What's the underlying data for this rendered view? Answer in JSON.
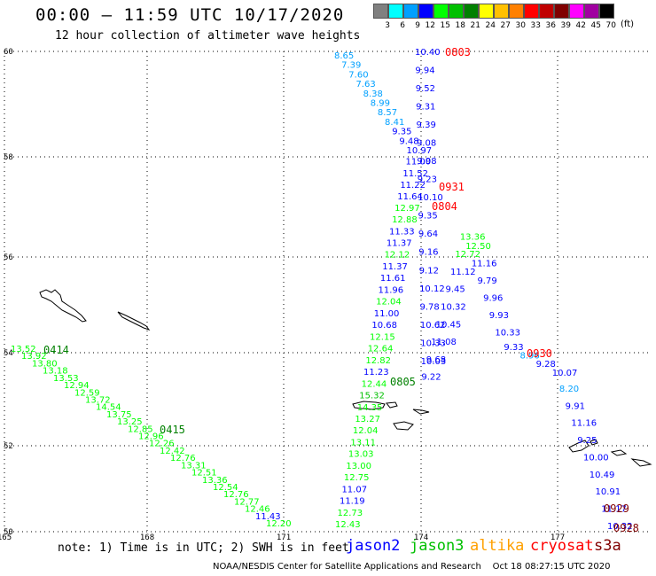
{
  "header": {
    "title": "00:00 – 11:59 UTC 10/17/2020",
    "subtitle": "12 hour collection of altimeter wave heights"
  },
  "legend": {
    "unit_label": "(ft)",
    "bins": [
      {
        "label": "3",
        "color": "#808080"
      },
      {
        "label": "6",
        "color": "#00ffff"
      },
      {
        "label": "9",
        "color": "#00a0ff"
      },
      {
        "label": "12",
        "color": "#0000ff"
      },
      {
        "label": "15",
        "color": "#00ff00"
      },
      {
        "label": "18",
        "color": "#00c000"
      },
      {
        "label": "21",
        "color": "#008000"
      },
      {
        "label": "24",
        "color": "#ffff00"
      },
      {
        "label": "27",
        "color": "#ffc000"
      },
      {
        "label": "30",
        "color": "#ff8000"
      },
      {
        "label": "33",
        "color": "#ff0000"
      },
      {
        "label": "36",
        "color": "#c00000"
      },
      {
        "label": "39",
        "color": "#800000"
      },
      {
        "label": "42",
        "color": "#ff00ff"
      },
      {
        "label": "45",
        "color": "#a000a0"
      },
      {
        "label": "70",
        "color": "#000000"
      }
    ]
  },
  "map": {
    "lon_ticks": [
      "165",
      "168",
      "171",
      "174",
      "177"
    ],
    "lat_ticks": [
      "60",
      "58",
      "56",
      "54",
      "52",
      "50"
    ],
    "gridlines": true,
    "coastline_color": "#000000"
  },
  "footer": {
    "note": "note: 1) Time is in UTC; 2) SWH is in feet",
    "missions": [
      {
        "name": "jason2",
        "color": "#0000ff"
      },
      {
        "name": "jason3",
        "color": "#00c000"
      },
      {
        "name": "altika",
        "color": "#ffa000"
      },
      {
        "name": "cryosat",
        "color": "#ff0000"
      },
      {
        "name": "s3a",
        "color": "#800000"
      }
    ],
    "credit": "NOAA/NESDIS Center for Satellite Applications and Research    Oct 18 08:27:15 UTC 2020"
  },
  "tracks": [
    {
      "mission": "cryosat",
      "start": "0803",
      "values": [
        "10.40",
        "9.94",
        "9.52",
        "9.31",
        "9.39",
        "9.08",
        "9.98",
        "9.23",
        "10.10",
        "9.35",
        "9.64",
        "9.16",
        "9.12",
        "10.12",
        "9.78",
        "10.62",
        "10.33",
        "10.03",
        "9.22",
        "9.68",
        "11.08",
        "10.45",
        "10.32",
        "9.45",
        "11.12",
        "12.72",
        "13.36",
        "12.50",
        "11.16",
        "9.79",
        "9.96",
        "9.93",
        "10.33",
        "9.33",
        "8.96",
        "9.28",
        "10.07",
        "8.20",
        "9.91",
        "11.16",
        "9.25",
        "10.00",
        "10.49",
        "10.91",
        "11.17",
        "10.32"
      ]
    },
    {
      "mission": "cryosat",
      "start": "0931",
      "values": []
    },
    {
      "mission": "cryosat",
      "start": "0804",
      "values": []
    },
    {
      "mission": "jason3",
      "start": "0805",
      "values": [
        "8.65",
        "7.39",
        "7.60",
        "7.63",
        "8.38",
        "8.99",
        "8.57",
        "8.41",
        "9.35",
        "9.48",
        "10.97",
        "11.00",
        "11.52",
        "11.22",
        "11.64",
        "12.97",
        "12.88",
        "11.33",
        "11.37",
        "12.12",
        "11.37",
        "11.61",
        "11.96",
        "12.04",
        "11.00",
        "10.68",
        "12.15",
        "12.64",
        "12.82",
        "11.23",
        "12.44",
        "15.32",
        "14.35",
        "13.27",
        "12.04",
        "13.11",
        "13.03",
        "13.00",
        "12.75",
        "11.07",
        "11.19",
        "12.73",
        "12.43"
      ]
    },
    {
      "mission": "jason3",
      "start": "0414",
      "values": [
        "13.52",
        "13.92",
        "13.80",
        "13.18",
        "13.53",
        "12.94",
        "12.59",
        "13.72",
        "14.54",
        "13.75",
        "13.25",
        "12.85",
        "12.96",
        "12.26",
        "12.42",
        "12.76",
        "13.31",
        "12.51",
        "13.36",
        "12.54",
        "12.76",
        "12.77",
        "12.46",
        "11.43",
        "12.20"
      ]
    },
    {
      "mission": "jason3",
      "start": "0415",
      "values": []
    },
    {
      "mission": "cryosat",
      "start": "0930",
      "values": []
    },
    {
      "mission": "s3a",
      "start": "0929",
      "values": []
    },
    {
      "mission": "s3a",
      "start": "0928",
      "values": []
    }
  ]
}
